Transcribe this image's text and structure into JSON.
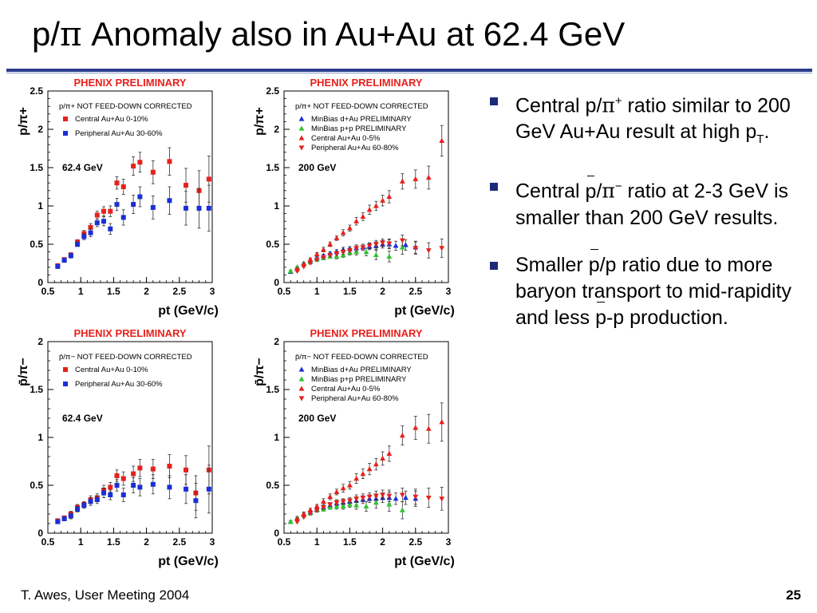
{
  "slide": {
    "title_a": "p/",
    "title_pi": "π",
    "title_b": " Anomaly also in Au+Au at 62.4 GeV",
    "footer_left": "T. Awes, User Meeting 2004",
    "page_number": "25"
  },
  "bullets": [
    {
      "parts": [
        "Central p/",
        "π",
        "+",
        " ratio similar to 200 GeV Au+Au result at high p",
        "T",
        "."
      ]
    },
    {
      "parts": [
        "Central ",
        "p",
        "/",
        "π",
        "−",
        " ratio at 2-3 GeV is smaller than 200 GeV results."
      ]
    },
    {
      "parts": [
        "Smaller ",
        "p",
        "/p ratio due to more baryon transport to mid-rapidity and less ",
        "p",
        "-p production."
      ]
    }
  ],
  "colors": {
    "red": "#e8201c",
    "blue": "#1a2fd6",
    "green": "#2fc42f",
    "accent": "#2a3c8c"
  },
  "chart_data": [
    {
      "type": "scatter",
      "title": "PHENIX PRELIMINARY",
      "ylabel": "p/π+",
      "xlabel": "pt (GeV/c)",
      "annotation": "p/π+ NOT FEED-DOWN CORRECTED",
      "energy_label": "62.4 GeV",
      "xlim": [
        0.5,
        3
      ],
      "ylim": [
        0,
        2.5
      ],
      "x_ticks": [
        "0.5",
        "1",
        "1.5",
        "2",
        "2.5",
        "3"
      ],
      "y_ticks": [
        "0",
        "0.5",
        "1",
        "1.5",
        "2",
        "2.5"
      ],
      "series": [
        {
          "name": "Central    Au+Au 0-10%",
          "marker": "square",
          "color": "#e8201c",
          "x": [
            0.65,
            0.75,
            0.85,
            0.95,
            1.05,
            1.15,
            1.25,
            1.35,
            1.45,
            1.55,
            1.65,
            1.8,
            1.9,
            2.1,
            2.35,
            2.6,
            2.8,
            2.95
          ],
          "y": [
            0.22,
            0.3,
            0.36,
            0.53,
            0.64,
            0.72,
            0.88,
            0.93,
            0.93,
            1.3,
            1.25,
            1.52,
            1.57,
            1.44,
            1.58,
            1.27,
            1.2,
            1.35
          ],
          "err": [
            0.02,
            0.02,
            0.03,
            0.03,
            0.04,
            0.05,
            0.05,
            0.06,
            0.07,
            0.08,
            0.1,
            0.12,
            0.13,
            0.15,
            0.18,
            0.22,
            0.26,
            0.3
          ]
        },
        {
          "name": "Peripheral Au+Au 30-60%",
          "marker": "square",
          "color": "#1a2fd6",
          "x": [
            0.65,
            0.75,
            0.85,
            0.95,
            1.05,
            1.15,
            1.25,
            1.35,
            1.45,
            1.55,
            1.65,
            1.8,
            1.9,
            2.1,
            2.35,
            2.6,
            2.8,
            2.95
          ],
          "y": [
            0.21,
            0.29,
            0.35,
            0.5,
            0.6,
            0.65,
            0.78,
            0.8,
            0.7,
            1.02,
            0.85,
            1.02,
            1.12,
            0.98,
            1.07,
            0.97,
            0.97,
            0.97
          ],
          "err": [
            0.02,
            0.02,
            0.03,
            0.03,
            0.04,
            0.05,
            0.05,
            0.06,
            0.07,
            0.08,
            0.1,
            0.12,
            0.13,
            0.15,
            0.18,
            0.22,
            0.26,
            0.3
          ]
        }
      ]
    },
    {
      "type": "scatter",
      "title": "PHENIX PRELIMINARY",
      "ylabel": "p/π+",
      "xlabel": "pt (GeV/c)",
      "annotation": "p/π+ NOT FEED-DOWN CORRECTED",
      "energy_label": "200 GeV",
      "xlim": [
        0.5,
        3
      ],
      "ylim": [
        0,
        2.5
      ],
      "x_ticks": [
        "0.5",
        "1",
        "1.5",
        "2",
        "2.5",
        "3"
      ],
      "y_ticks": [
        "0",
        "0.5",
        "1",
        "1.5",
        "2",
        "2.5"
      ],
      "series": [
        {
          "name": "MinBias d+Au PRELIMINARY",
          "marker": "triangle-up",
          "color": "#1a2fd6",
          "x": [
            0.6,
            0.7,
            0.8,
            0.9,
            1.0,
            1.1,
            1.2,
            1.3,
            1.4,
            1.5,
            1.6,
            1.7,
            1.8,
            1.9,
            2.0,
            2.1,
            2.2,
            2.35,
            2.5
          ],
          "y": [
            0.14,
            0.2,
            0.25,
            0.28,
            0.32,
            0.35,
            0.38,
            0.4,
            0.43,
            0.44,
            0.45,
            0.46,
            0.47,
            0.48,
            0.5,
            0.5,
            0.48,
            0.49,
            0.46
          ],
          "err": [
            0.01,
            0.01,
            0.01,
            0.02,
            0.02,
            0.02,
            0.02,
            0.03,
            0.03,
            0.03,
            0.04,
            0.04,
            0.04,
            0.05,
            0.05,
            0.06,
            0.06,
            0.07,
            0.08
          ]
        },
        {
          "name": "MinBias p+p PRELIMINARY",
          "marker": "triangle-up",
          "color": "#2fc42f",
          "x": [
            0.6,
            0.7,
            0.8,
            0.9,
            1.0,
            1.1,
            1.2,
            1.3,
            1.4,
            1.5,
            1.6,
            1.75,
            1.9,
            2.1,
            2.3
          ],
          "y": [
            0.15,
            0.2,
            0.25,
            0.27,
            0.3,
            0.32,
            0.34,
            0.34,
            0.36,
            0.39,
            0.4,
            0.4,
            0.36,
            0.34,
            0.46
          ],
          "err": [
            0.01,
            0.01,
            0.01,
            0.02,
            0.02,
            0.02,
            0.02,
            0.03,
            0.03,
            0.03,
            0.04,
            0.05,
            0.06,
            0.07,
            0.09
          ]
        },
        {
          "name": "Central    Au+Au  0-5%",
          "marker": "triangle-up",
          "color": "#e8201c",
          "x": [
            0.7,
            0.8,
            0.9,
            1.0,
            1.1,
            1.2,
            1.3,
            1.4,
            1.5,
            1.6,
            1.7,
            1.8,
            1.9,
            2.0,
            2.1,
            2.3,
            2.5,
            2.7,
            2.9
          ],
          "y": [
            0.18,
            0.24,
            0.3,
            0.37,
            0.43,
            0.5,
            0.58,
            0.65,
            0.71,
            0.8,
            0.86,
            0.95,
            1.0,
            1.07,
            1.12,
            1.32,
            1.35,
            1.37,
            1.85
          ],
          "err": [
            0.01,
            0.02,
            0.02,
            0.02,
            0.03,
            0.03,
            0.03,
            0.04,
            0.04,
            0.05,
            0.05,
            0.06,
            0.06,
            0.07,
            0.08,
            0.1,
            0.12,
            0.15,
            0.2
          ]
        },
        {
          "name": "Peripheral Au+Au 60-80%",
          "marker": "triangle-down",
          "color": "#e8201c",
          "x": [
            0.7,
            0.8,
            0.9,
            1.0,
            1.1,
            1.2,
            1.3,
            1.4,
            1.5,
            1.6,
            1.7,
            1.8,
            1.9,
            2.0,
            2.1,
            2.3,
            2.5,
            2.7,
            2.9
          ],
          "y": [
            0.15,
            0.21,
            0.26,
            0.3,
            0.33,
            0.36,
            0.38,
            0.4,
            0.42,
            0.45,
            0.46,
            0.48,
            0.5,
            0.52,
            0.51,
            0.55,
            0.45,
            0.42,
            0.45
          ],
          "err": [
            0.01,
            0.01,
            0.02,
            0.02,
            0.02,
            0.02,
            0.03,
            0.03,
            0.03,
            0.04,
            0.04,
            0.04,
            0.05,
            0.05,
            0.06,
            0.07,
            0.08,
            0.1,
            0.12
          ]
        }
      ]
    },
    {
      "type": "scatter",
      "title": "PHENIX PRELIMINARY",
      "ylabel": "p̄/π−",
      "xlabel": "pt (GeV/c)",
      "annotation": "p̄/π− NOT FEED-DOWN CORRECTED",
      "energy_label": "62.4 GeV",
      "xlim": [
        0.5,
        3
      ],
      "ylim": [
        0,
        2
      ],
      "x_ticks": [
        "0.5",
        "1",
        "1.5",
        "2",
        "2.5",
        "3"
      ],
      "y_ticks": [
        "0",
        "0.5",
        "1",
        "1.5",
        "2"
      ],
      "series": [
        {
          "name": "Central    Au+Au 0-10%",
          "marker": "square",
          "color": "#e8201c",
          "x": [
            0.65,
            0.75,
            0.85,
            0.95,
            1.05,
            1.15,
            1.25,
            1.35,
            1.45,
            1.55,
            1.65,
            1.8,
            1.9,
            2.1,
            2.35,
            2.6,
            2.75,
            2.95
          ],
          "y": [
            0.13,
            0.16,
            0.2,
            0.27,
            0.3,
            0.35,
            0.37,
            0.45,
            0.48,
            0.6,
            0.57,
            0.62,
            0.68,
            0.67,
            0.7,
            0.66,
            0.42,
            0.66
          ],
          "err": [
            0.02,
            0.02,
            0.03,
            0.03,
            0.03,
            0.04,
            0.04,
            0.05,
            0.05,
            0.06,
            0.07,
            0.08,
            0.09,
            0.1,
            0.12,
            0.15,
            0.18,
            0.25
          ]
        },
        {
          "name": "Peripheral Au+Au 30-60%",
          "marker": "square",
          "color": "#1a2fd6",
          "x": [
            0.65,
            0.75,
            0.85,
            0.95,
            1.05,
            1.15,
            1.25,
            1.35,
            1.45,
            1.55,
            1.65,
            1.8,
            1.9,
            2.1,
            2.35,
            2.6,
            2.75,
            2.95
          ],
          "y": [
            0.12,
            0.15,
            0.18,
            0.25,
            0.29,
            0.33,
            0.35,
            0.42,
            0.4,
            0.5,
            0.4,
            0.5,
            0.48,
            0.51,
            0.48,
            0.46,
            0.34,
            0.46
          ],
          "err": [
            0.02,
            0.02,
            0.03,
            0.03,
            0.03,
            0.04,
            0.04,
            0.05,
            0.05,
            0.06,
            0.07,
            0.08,
            0.09,
            0.1,
            0.12,
            0.15,
            0.18,
            0.25
          ]
        }
      ]
    },
    {
      "type": "scatter",
      "title": "PHENIX PRELIMINARY",
      "ylabel": "p̄/π−",
      "xlabel": "pt (GeV/c)",
      "annotation": "p̄/π− NOT FEED-DOWN CORRECTED",
      "energy_label": "200 GeV",
      "xlim": [
        0.5,
        3
      ],
      "ylim": [
        0,
        2
      ],
      "x_ticks": [
        "0.5",
        "1",
        "1.5",
        "2",
        "2.5",
        "3"
      ],
      "y_ticks": [
        "0",
        "0.5",
        "1",
        "1.5",
        "2"
      ],
      "series": [
        {
          "name": "MinBias d+Au PRELIMINARY",
          "marker": "triangle-up",
          "color": "#1a2fd6",
          "x": [
            0.6,
            0.7,
            0.8,
            0.9,
            1.0,
            1.1,
            1.2,
            1.3,
            1.4,
            1.5,
            1.6,
            1.7,
            1.8,
            1.9,
            2.0,
            2.1,
            2.2,
            2.35,
            2.5
          ],
          "y": [
            0.12,
            0.16,
            0.2,
            0.22,
            0.25,
            0.27,
            0.29,
            0.31,
            0.32,
            0.33,
            0.34,
            0.35,
            0.36,
            0.36,
            0.37,
            0.37,
            0.36,
            0.37,
            0.36
          ],
          "err": [
            0.01,
            0.01,
            0.01,
            0.02,
            0.02,
            0.02,
            0.02,
            0.03,
            0.03,
            0.03,
            0.04,
            0.04,
            0.04,
            0.05,
            0.05,
            0.06,
            0.06,
            0.07,
            0.08
          ]
        },
        {
          "name": "MinBias p+p PRELIMINARY",
          "marker": "triangle-up",
          "color": "#2fc42f",
          "x": [
            0.6,
            0.7,
            0.8,
            0.9,
            1.0,
            1.1,
            1.2,
            1.3,
            1.4,
            1.5,
            1.6,
            1.75,
            1.9,
            2.1,
            2.3
          ],
          "y": [
            0.12,
            0.16,
            0.19,
            0.21,
            0.24,
            0.25,
            0.27,
            0.28,
            0.28,
            0.3,
            0.29,
            0.28,
            0.32,
            0.3,
            0.24
          ],
          "err": [
            0.01,
            0.01,
            0.01,
            0.02,
            0.02,
            0.02,
            0.02,
            0.03,
            0.03,
            0.03,
            0.04,
            0.05,
            0.06,
            0.07,
            0.09
          ]
        },
        {
          "name": "Central    Au+Au 0-5%",
          "marker": "triangle-up",
          "color": "#e8201c",
          "x": [
            0.7,
            0.8,
            0.9,
            1.0,
            1.1,
            1.2,
            1.3,
            1.4,
            1.5,
            1.6,
            1.7,
            1.8,
            1.9,
            2.0,
            2.1,
            2.3,
            2.5,
            2.7,
            2.9
          ],
          "y": [
            0.15,
            0.2,
            0.24,
            0.28,
            0.33,
            0.38,
            0.43,
            0.47,
            0.5,
            0.57,
            0.62,
            0.67,
            0.72,
            0.78,
            0.83,
            1.02,
            1.1,
            1.09,
            1.16
          ],
          "err": [
            0.01,
            0.02,
            0.02,
            0.02,
            0.03,
            0.03,
            0.03,
            0.04,
            0.04,
            0.05,
            0.05,
            0.06,
            0.06,
            0.07,
            0.08,
            0.1,
            0.12,
            0.15,
            0.2
          ]
        },
        {
          "name": "Peripheral Au+Au 60-80%",
          "marker": "triangle-down",
          "color": "#e8201c",
          "x": [
            0.7,
            0.8,
            0.9,
            1.0,
            1.1,
            1.2,
            1.3,
            1.4,
            1.5,
            1.6,
            1.7,
            1.8,
            1.9,
            2.0,
            2.1,
            2.3,
            2.5,
            2.7,
            2.9
          ],
          "y": [
            0.12,
            0.17,
            0.21,
            0.24,
            0.27,
            0.3,
            0.32,
            0.33,
            0.34,
            0.36,
            0.37,
            0.38,
            0.39,
            0.4,
            0.39,
            0.4,
            0.38,
            0.37,
            0.36
          ],
          "err": [
            0.01,
            0.01,
            0.02,
            0.02,
            0.02,
            0.02,
            0.03,
            0.03,
            0.03,
            0.04,
            0.04,
            0.04,
            0.05,
            0.05,
            0.06,
            0.07,
            0.08,
            0.1,
            0.12
          ]
        }
      ]
    }
  ]
}
